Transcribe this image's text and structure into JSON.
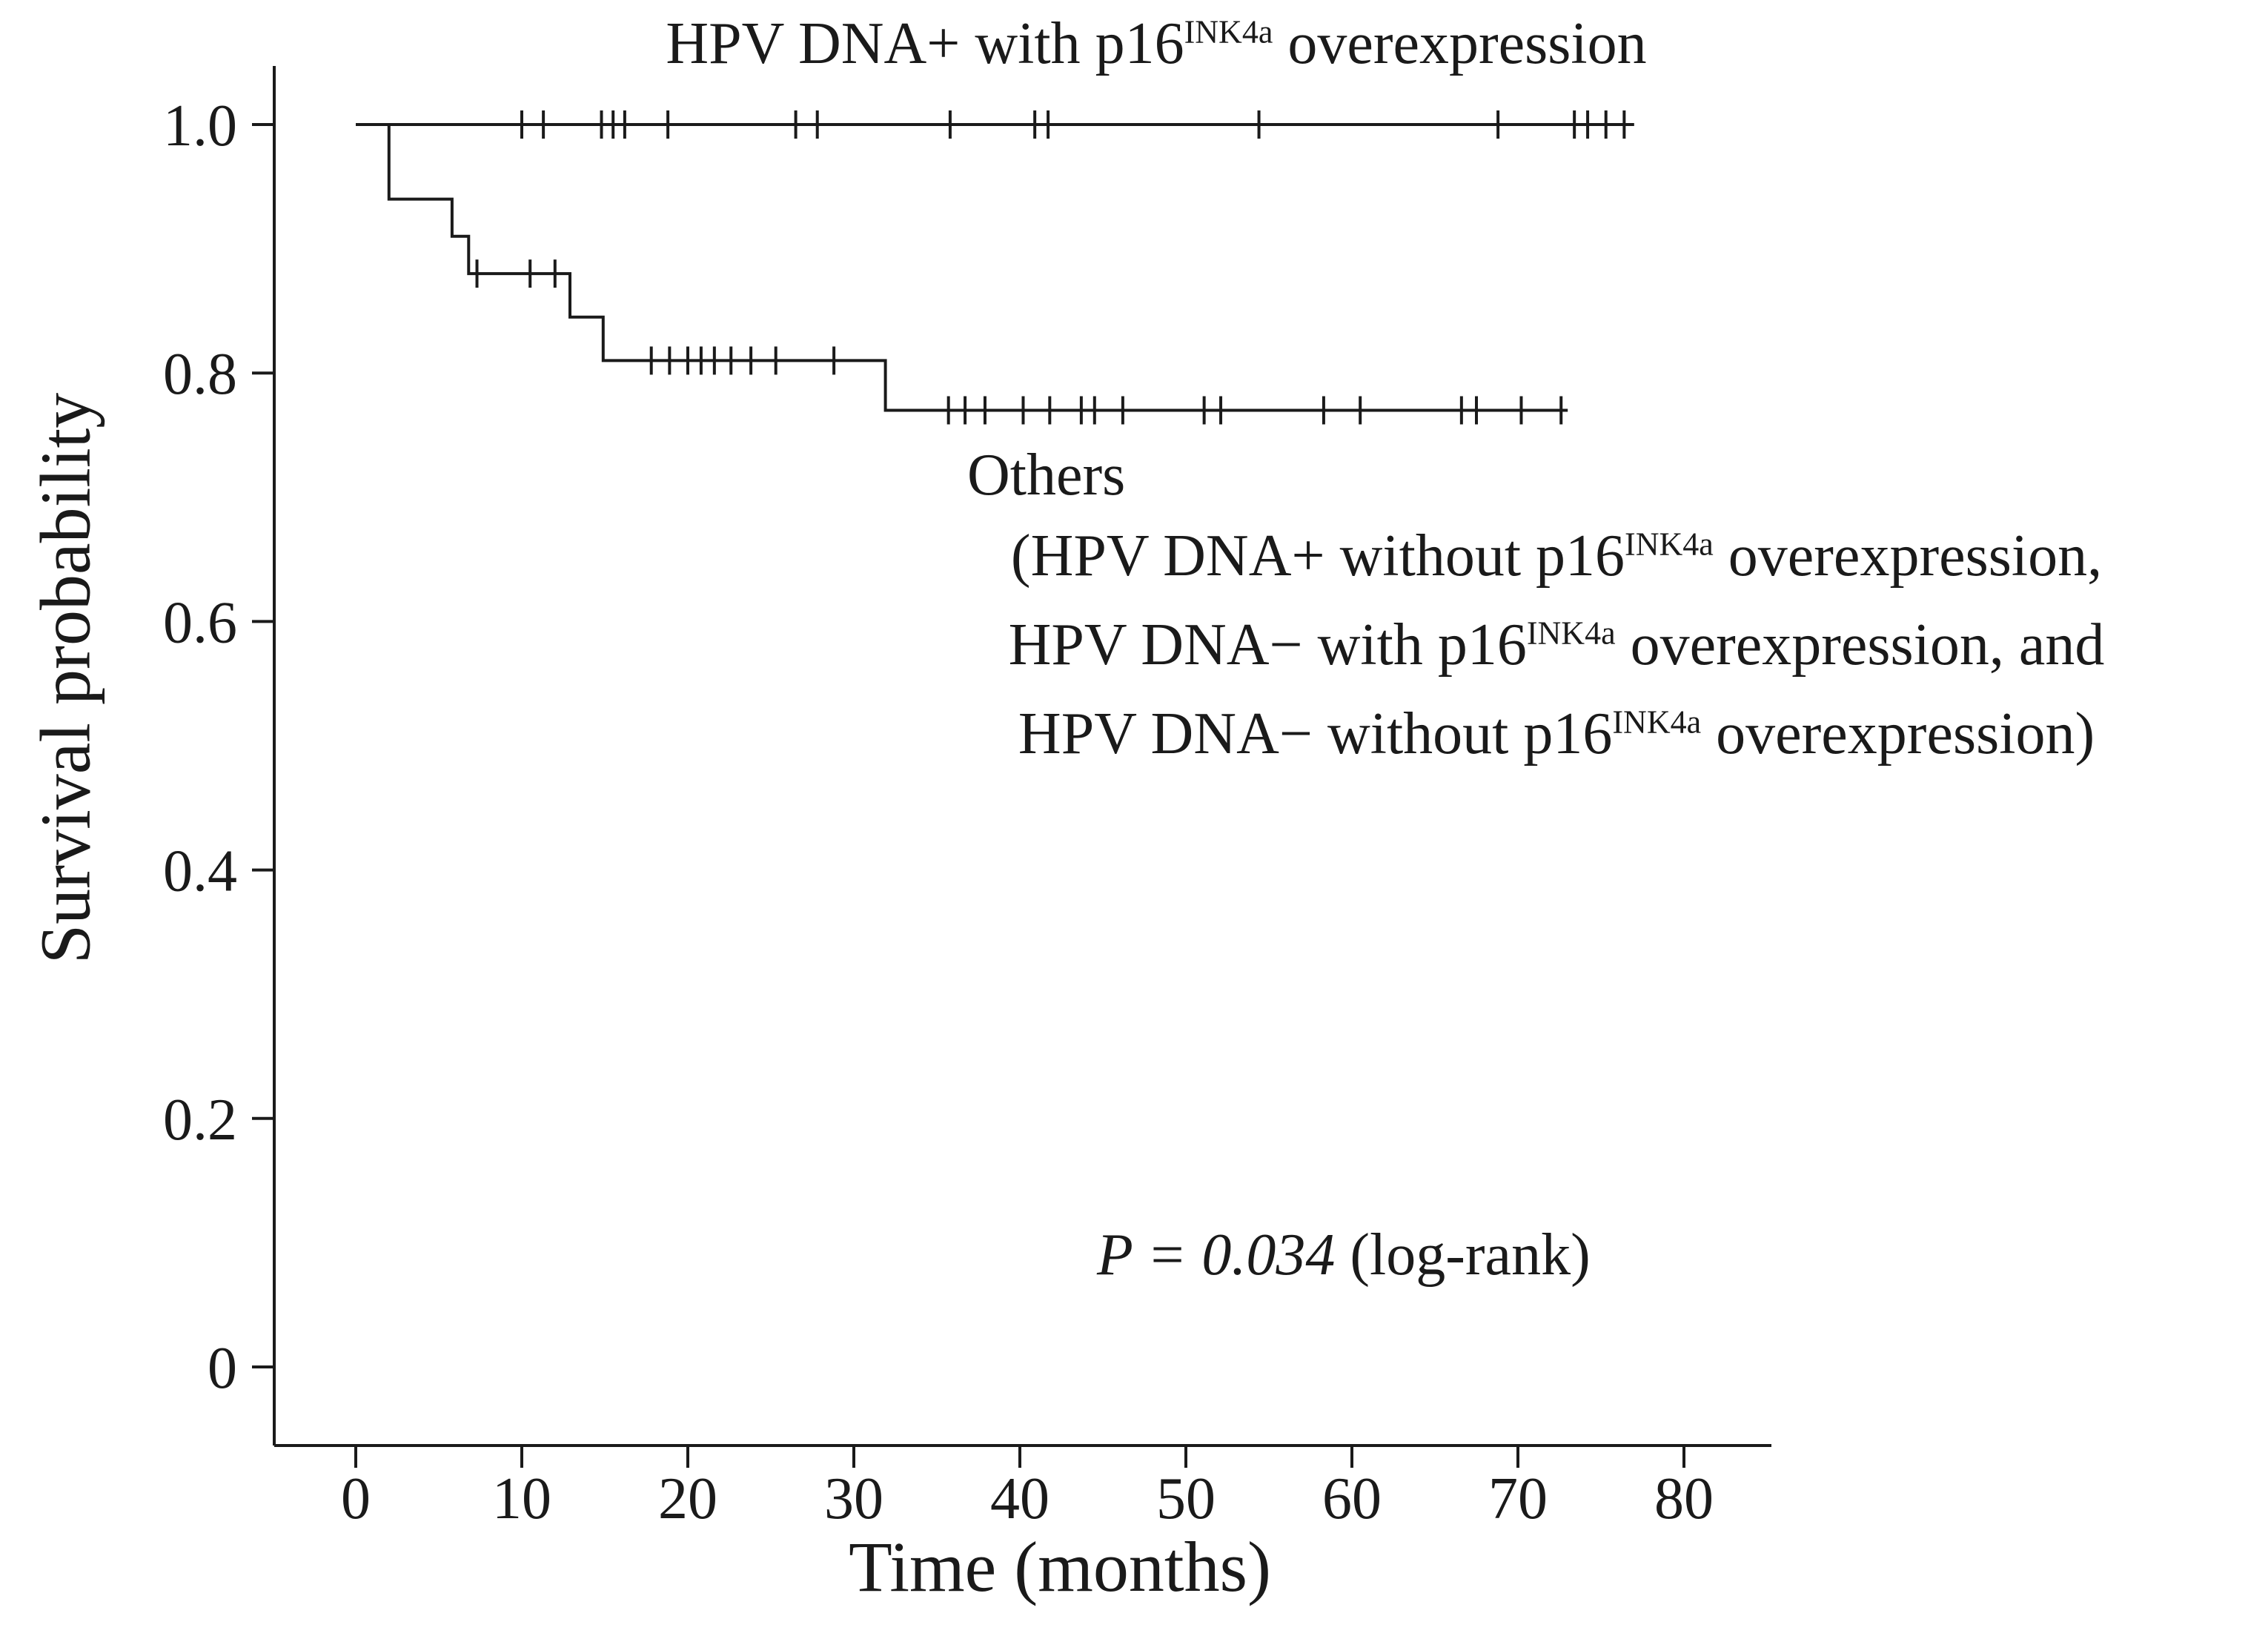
{
  "chart_data": {
    "type": "line",
    "subtype": "kaplan_meier_step_curves",
    "title": "",
    "xlabel": "Time (months)",
    "ylabel": "Survival probability",
    "xlim": [
      0,
      84
    ],
    "ylim": [
      0,
      1.0
    ],
    "xticks": [
      0,
      10,
      20,
      30,
      40,
      50,
      60,
      70,
      80
    ],
    "yticks": [
      0,
      0.2,
      0.4,
      0.6,
      0.8,
      1.0
    ],
    "ytick_labels": [
      "0",
      "0.2",
      "0.4",
      "0.6",
      "0.8",
      "1.0"
    ],
    "grid": false,
    "legend_position": "inline-annotations",
    "background_color": "#ffffff",
    "line_color": "#1a1a1a",
    "series": [
      {
        "name": "HPV DNA+ with p16INK4a overexpression",
        "steps": [
          [
            0,
            1.0
          ],
          [
            77,
            1.0
          ]
        ],
        "censors": [
          [
            10,
            1.0
          ],
          [
            11.3,
            1.0
          ],
          [
            14.8,
            1.0
          ],
          [
            15.5,
            1.0
          ],
          [
            16.2,
            1.0
          ],
          [
            18.8,
            1.0
          ],
          [
            26.5,
            1.0
          ],
          [
            27.8,
            1.0
          ],
          [
            35.8,
            1.0
          ],
          [
            40.9,
            1.0
          ],
          [
            41.7,
            1.0
          ],
          [
            54.4,
            1.0
          ],
          [
            68.8,
            1.0
          ],
          [
            73.4,
            1.0
          ],
          [
            74.2,
            1.0
          ],
          [
            75.3,
            1.0
          ],
          [
            76.4,
            1.0
          ]
        ]
      },
      {
        "name": "Others",
        "steps": [
          [
            0,
            1.0
          ],
          [
            2,
            1.0
          ],
          [
            2,
            0.94
          ],
          [
            5.8,
            0.94
          ],
          [
            5.8,
            0.91
          ],
          [
            6.8,
            0.91
          ],
          [
            6.8,
            0.88
          ],
          [
            12.9,
            0.88
          ],
          [
            12.9,
            0.845
          ],
          [
            14.9,
            0.845
          ],
          [
            14.9,
            0.81
          ],
          [
            31.9,
            0.81
          ],
          [
            31.9,
            0.77
          ],
          [
            73,
            0.77
          ]
        ],
        "censors": [
          [
            7.3,
            0.88
          ],
          [
            10.5,
            0.88
          ],
          [
            12,
            0.88
          ],
          [
            17.8,
            0.81
          ],
          [
            18.9,
            0.81
          ],
          [
            20,
            0.81
          ],
          [
            20.8,
            0.81
          ],
          [
            21.6,
            0.81
          ],
          [
            22.6,
            0.81
          ],
          [
            23.8,
            0.81
          ],
          [
            25.3,
            0.81
          ],
          [
            28.8,
            0.81
          ],
          [
            35.7,
            0.77
          ],
          [
            36.7,
            0.77
          ],
          [
            37.9,
            0.77
          ],
          [
            40.2,
            0.77
          ],
          [
            41.8,
            0.77
          ],
          [
            43.7,
            0.77
          ],
          [
            44.5,
            0.77
          ],
          [
            46.2,
            0.77
          ],
          [
            51.1,
            0.77
          ],
          [
            52.1,
            0.77
          ],
          [
            58.3,
            0.77
          ],
          [
            60.5,
            0.77
          ],
          [
            66.6,
            0.77
          ],
          [
            67.5,
            0.77
          ],
          [
            70.2,
            0.77
          ],
          [
            72.6,
            0.77
          ]
        ]
      }
    ],
    "annotations": {
      "pvalue": "P = 0.034",
      "pvalue_suffix": " (log-rank)"
    }
  },
  "labels": {
    "top_series": {
      "pre": "HPV DNA+ with p16",
      "sup": "INK4a",
      "post": " overexpression"
    },
    "others_title": "Others",
    "others_lines": [
      {
        "pre": "(HPV DNA+ without p16",
        "sup": "INK4a",
        "post": " overexpression,"
      },
      {
        "pre": "HPV DNA− with p16",
        "sup": "INK4a",
        "post": " overexpression, and"
      },
      {
        "pre": "HPV DNA− without p16",
        "sup": "INK4a",
        "post": " overexpression)"
      }
    ]
  }
}
